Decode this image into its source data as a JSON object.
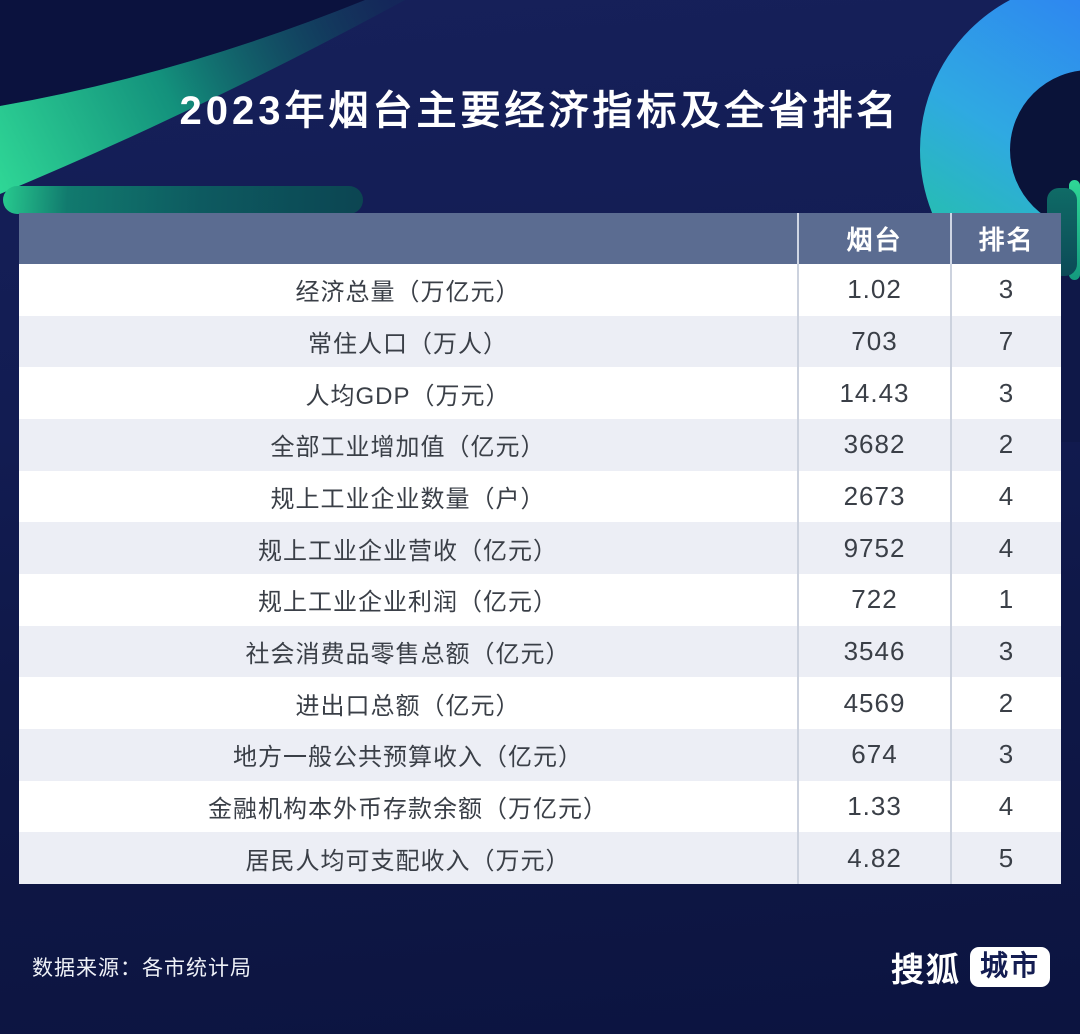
{
  "title": "2023年烟台主要经济指标及全省排名",
  "chart_data": {
    "type": "table",
    "title": "2023年烟台主要经济指标及全省排名",
    "columns": [
      "",
      "烟台",
      "排名"
    ],
    "rows": [
      [
        "经济总量（万亿元）",
        "1.02",
        "3"
      ],
      [
        "常住人口（万人）",
        "703",
        "7"
      ],
      [
        "人均GDP（万元）",
        "14.43",
        "3"
      ],
      [
        "全部工业增加值（亿元）",
        "3682",
        "2"
      ],
      [
        "规上工业企业数量（户）",
        "2673",
        "4"
      ],
      [
        "规上工业企业营收（亿元）",
        "9752",
        "4"
      ],
      [
        "规上工业企业利润（亿元）",
        "722",
        "1"
      ],
      [
        "社会消费品零售总额（亿元）",
        "3546",
        "3"
      ],
      [
        "进出口总额（亿元）",
        "4569",
        "2"
      ],
      [
        "地方一般公共预算收入（亿元）",
        "674",
        "3"
      ],
      [
        "金融机构本外币存款余额（万亿元）",
        "1.33",
        "4"
      ],
      [
        "居民人均可支配收入（万元）",
        "4.82",
        "5"
      ]
    ],
    "source": "各市统计局",
    "layout": {
      "striped": true,
      "header_position": "top",
      "grid": "column-dividers"
    }
  },
  "footer": {
    "source": "数据来源：各市统计局",
    "brand": {
      "name": "搜狐",
      "badge": "城市"
    }
  },
  "colors": {
    "background_navy": "#121c52",
    "header_bg": "#5b6c91",
    "row_bg": "#ffffff",
    "row_alt_bg": "#eceef5",
    "cell_text": "#3a3f47",
    "accent_green": "#2fd796",
    "accent_cyan": "#2fa9e2",
    "accent_blue": "#2e7bf5",
    "accent_teal_dark": "#0c4a57"
  }
}
